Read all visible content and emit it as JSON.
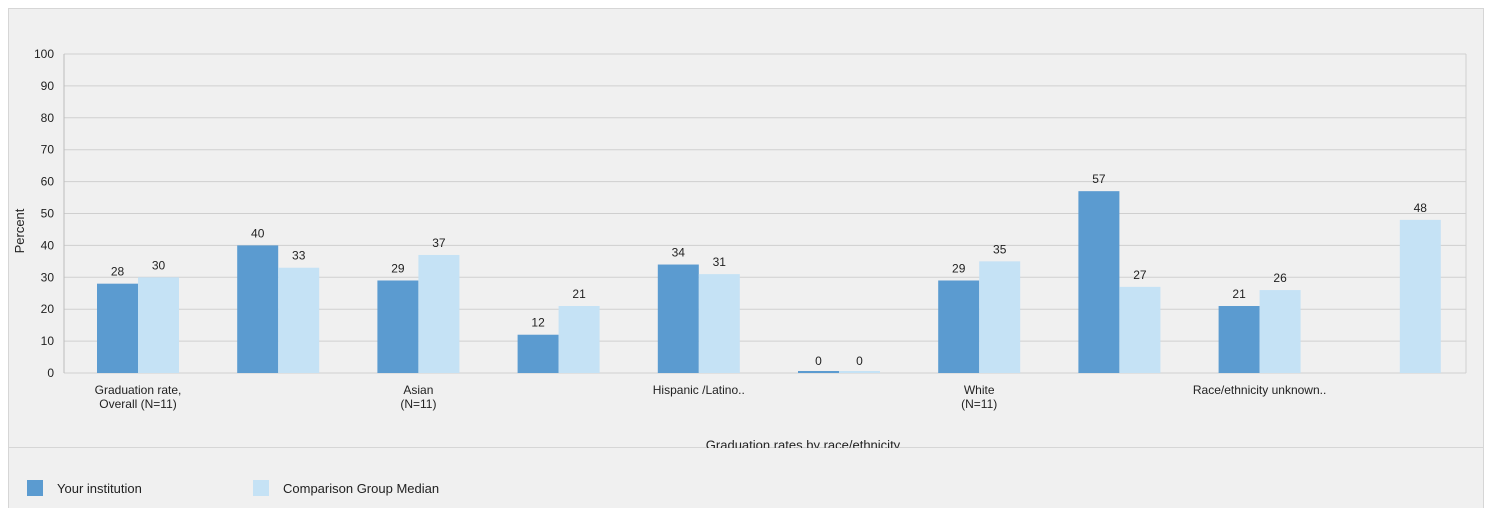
{
  "chart_data": {
    "type": "bar",
    "xlabel": "Graduation rates by race/ethnicity",
    "ylabel": "Percent",
    "ylim": [
      0,
      100
    ],
    "yticks": [
      0,
      10,
      20,
      30,
      40,
      50,
      60,
      70,
      80,
      90,
      100
    ],
    "grid": true,
    "legend_position": "bottom-left",
    "categories": [
      "Graduation rate,\nOverall (N=11)",
      "",
      "Asian\n(N=11)",
      "",
      "Hispanic /Latino..",
      "",
      "White\n(N=11)",
      "",
      "Race/ethnicity unknown..",
      ""
    ],
    "series": [
      {
        "name": "Your institution",
        "color": "#5b9bd0",
        "values": [
          28,
          40,
          29,
          12,
          34,
          0,
          29,
          57,
          21,
          null
        ],
        "labels": [
          "28",
          "40",
          "29",
          "12",
          "34",
          "0",
          "29",
          "57",
          "21",
          ""
        ]
      },
      {
        "name": "Comparison Group Median",
        "color": "#c5e2f5",
        "values": [
          30,
          33,
          37,
          21,
          31,
          0,
          35,
          27,
          26,
          48
        ],
        "labels": [
          "30",
          "33",
          "37",
          "21",
          "31",
          "0",
          "35",
          "27",
          "26",
          "48"
        ]
      }
    ]
  }
}
